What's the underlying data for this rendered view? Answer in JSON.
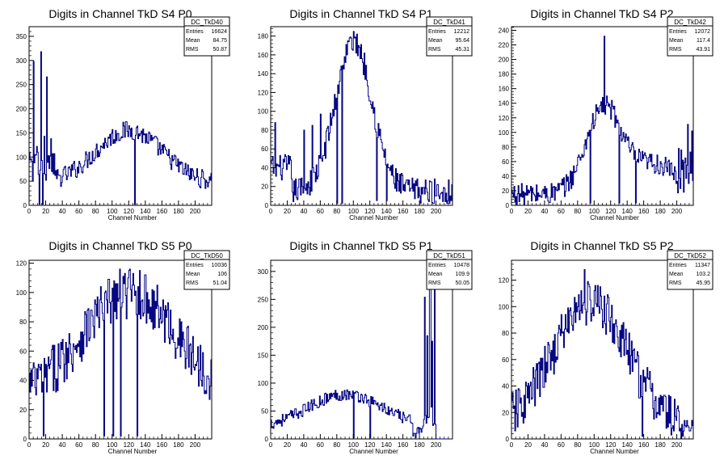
{
  "window": {
    "title": "Digits in Channel TkD",
    "background": "#ffffff",
    "hist_color": "#000080"
  },
  "chart_data": [
    {
      "type": "histogram",
      "title": "Digits in Channel TkD S4 P0",
      "xlabel": "Channel Number",
      "ylabel": "",
      "xlim": [
        0,
        220
      ],
      "ylim": [
        0,
        370
      ],
      "xticks": [
        0,
        20,
        40,
        60,
        80,
        100,
        120,
        140,
        160,
        180,
        200
      ],
      "yticks": [
        0,
        50,
        100,
        150,
        200,
        250,
        300,
        350
      ],
      "stats": {
        "name": "DC_TkD40",
        "entries": "16624",
        "mean": "84.75",
        "rms": "50.87"
      },
      "series": [
        {
          "values": []
        }
      ]
    },
    {
      "type": "histogram",
      "title": "Digits in Channel TkD S4 P1",
      "xlabel": "Channel Number",
      "ylabel": "",
      "xlim": [
        0,
        220
      ],
      "ylim": [
        0,
        190
      ],
      "xticks": [
        0,
        20,
        40,
        60,
        80,
        100,
        120,
        140,
        160,
        180,
        200
      ],
      "yticks": [
        0,
        20,
        40,
        60,
        80,
        100,
        120,
        140,
        160,
        180
      ],
      "stats": {
        "name": "DC_TkD41",
        "entries": "12212",
        "mean": "95.64",
        "rms": "45.31"
      },
      "series": [
        {
          "values": []
        }
      ]
    },
    {
      "type": "histogram",
      "title": "Digits in Channel TkD S4 P2",
      "xlabel": "Channel Number",
      "ylabel": "",
      "xlim": [
        0,
        220
      ],
      "ylim": [
        0,
        245
      ],
      "xticks": [
        0,
        20,
        40,
        60,
        80,
        100,
        120,
        140,
        160,
        180,
        200
      ],
      "yticks": [
        0,
        20,
        40,
        60,
        80,
        100,
        120,
        140,
        160,
        180,
        200,
        220,
        240
      ],
      "stats": {
        "name": "DC_TkD42",
        "entries": "12072",
        "mean": "117.4",
        "rms": "43.91"
      },
      "series": [
        {
          "values": []
        }
      ]
    },
    {
      "type": "histogram",
      "title": "Digits in Channel TkD S5 P0",
      "xlabel": "Channel Number",
      "ylabel": "",
      "xlim": [
        0,
        220
      ],
      "ylim": [
        0,
        122
      ],
      "xticks": [
        0,
        20,
        40,
        60,
        80,
        100,
        120,
        140,
        160,
        180,
        200
      ],
      "yticks": [
        0,
        20,
        40,
        60,
        80,
        100,
        120
      ],
      "stats": {
        "name": "DC_TkD50",
        "entries": "10036",
        "mean": "106",
        "rms": "51.04"
      },
      "series": [
        {
          "values": []
        }
      ]
    },
    {
      "type": "histogram",
      "title": "Digits in Channel TkD S5 P1",
      "xlabel": "Channel Number",
      "ylabel": "",
      "xlim": [
        0,
        220
      ],
      "ylim": [
        0,
        320
      ],
      "xticks": [
        0,
        20,
        40,
        60,
        80,
        100,
        120,
        140,
        160,
        180,
        200
      ],
      "yticks": [
        0,
        50,
        100,
        150,
        200,
        250,
        300
      ],
      "stats": {
        "name": "DC_TkD51",
        "entries": "10478",
        "mean": "109.9",
        "rms": "50.05"
      },
      "series": [
        {
          "values": []
        }
      ]
    },
    {
      "type": "histogram",
      "title": "Digits in Channel TkD S5 P2",
      "xlabel": "Channel Number",
      "ylabel": "",
      "xlim": [
        0,
        220
      ],
      "ylim": [
        0,
        135
      ],
      "xticks": [
        0,
        20,
        40,
        60,
        80,
        100,
        120,
        140,
        160,
        180,
        200
      ],
      "yticks": [
        0,
        20,
        40,
        60,
        80,
        100,
        120
      ],
      "stats": {
        "name": "DC_TkD52",
        "entries": "11347",
        "mean": "103.2",
        "rms": "45.95"
      },
      "series": [
        {
          "values": []
        }
      ]
    }
  ]
}
